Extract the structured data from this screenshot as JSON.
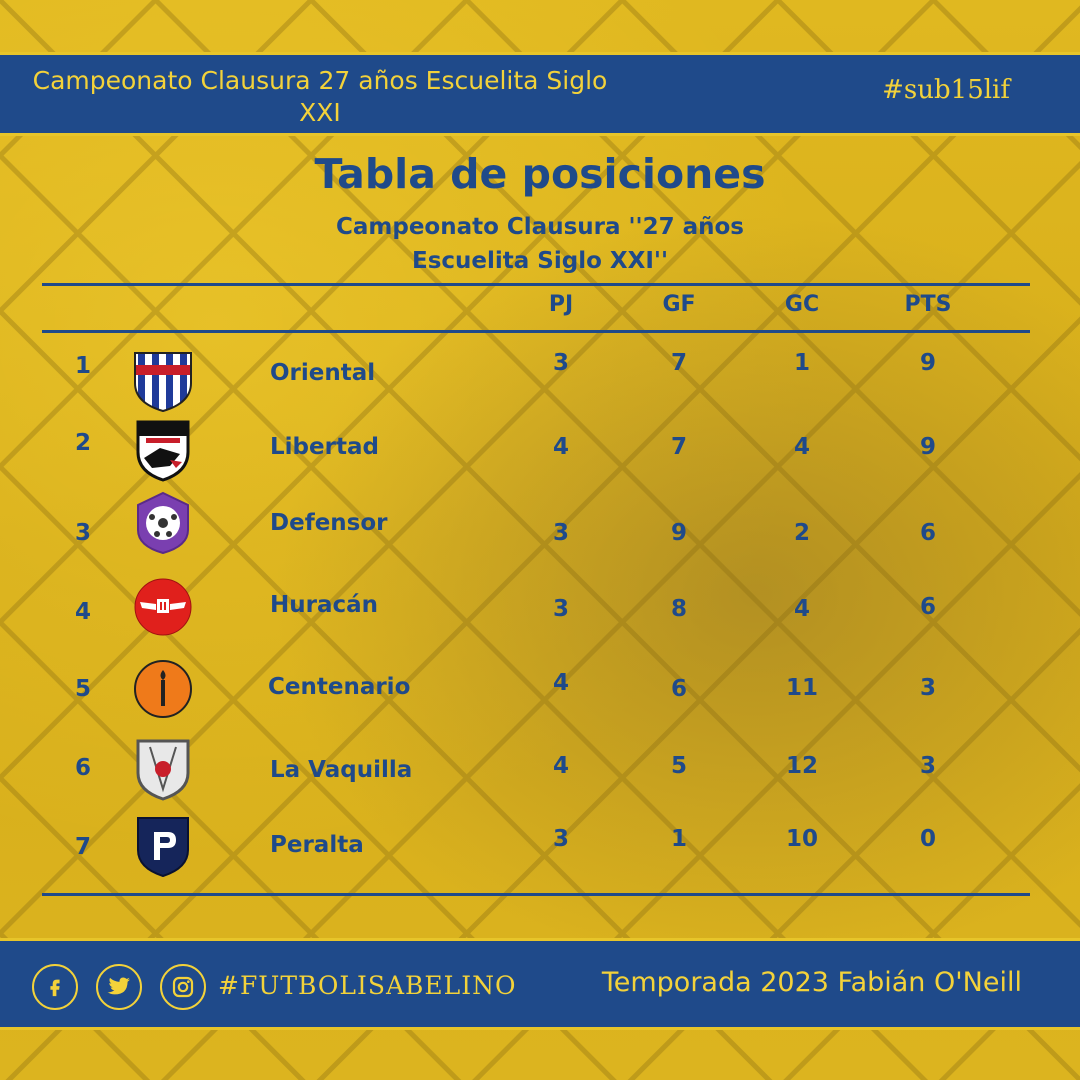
{
  "header": {
    "competition": "Campeonato Clausura 27 años Escuelita Siglo XXI",
    "hashtag": "#sub15lif"
  },
  "table": {
    "title": "Tabla de posiciones",
    "subtitle_line1": "Campeonato Clausura ''27 años",
    "subtitle_line2": "Escuelita Siglo XXI''",
    "columns": [
      "PJ",
      "GF",
      "GC",
      "PTS"
    ],
    "rows": [
      {
        "pos": "1",
        "team": "Oriental",
        "badge": "oriental-crest",
        "pj": "3",
        "gf": "7",
        "gc": "1",
        "pts": "9"
      },
      {
        "pos": "2",
        "team": "Libertad",
        "badge": "libertad-crest",
        "pj": "4",
        "gf": "7",
        "gc": "4",
        "pts": "9"
      },
      {
        "pos": "3",
        "team": "Defensor",
        "badge": "defensor-crest",
        "pj": "3",
        "gf": "9",
        "gc": "2",
        "pts": "6"
      },
      {
        "pos": "4",
        "team": "Huracán",
        "badge": "huracan-crest",
        "pj": "3",
        "gf": "8",
        "gc": "4",
        "pts": "6"
      },
      {
        "pos": "5",
        "team": "Centenario",
        "badge": "centenario-crest",
        "pj": "4",
        "gf": "6",
        "gc": "11",
        "pts": "3"
      },
      {
        "pos": "6",
        "team": "La Vaquilla",
        "badge": "vaquilla-crest",
        "pj": "4",
        "gf": "5",
        "gc": "12",
        "pts": "3"
      },
      {
        "pos": "7",
        "team": "Peralta",
        "badge": "peralta-crest",
        "pj": "3",
        "gf": "1",
        "gc": "10",
        "pts": "0"
      }
    ]
  },
  "footer": {
    "social_icons": [
      "facebook-icon",
      "twitter-icon",
      "instagram-icon"
    ],
    "hashtag": "#FUTBOLISABELINO",
    "season": "Temporada 2023 Fabián O'Neill"
  },
  "colors": {
    "blue": "#1f4a8a",
    "gold": "#f3d23a",
    "background": "#d9b21e"
  }
}
